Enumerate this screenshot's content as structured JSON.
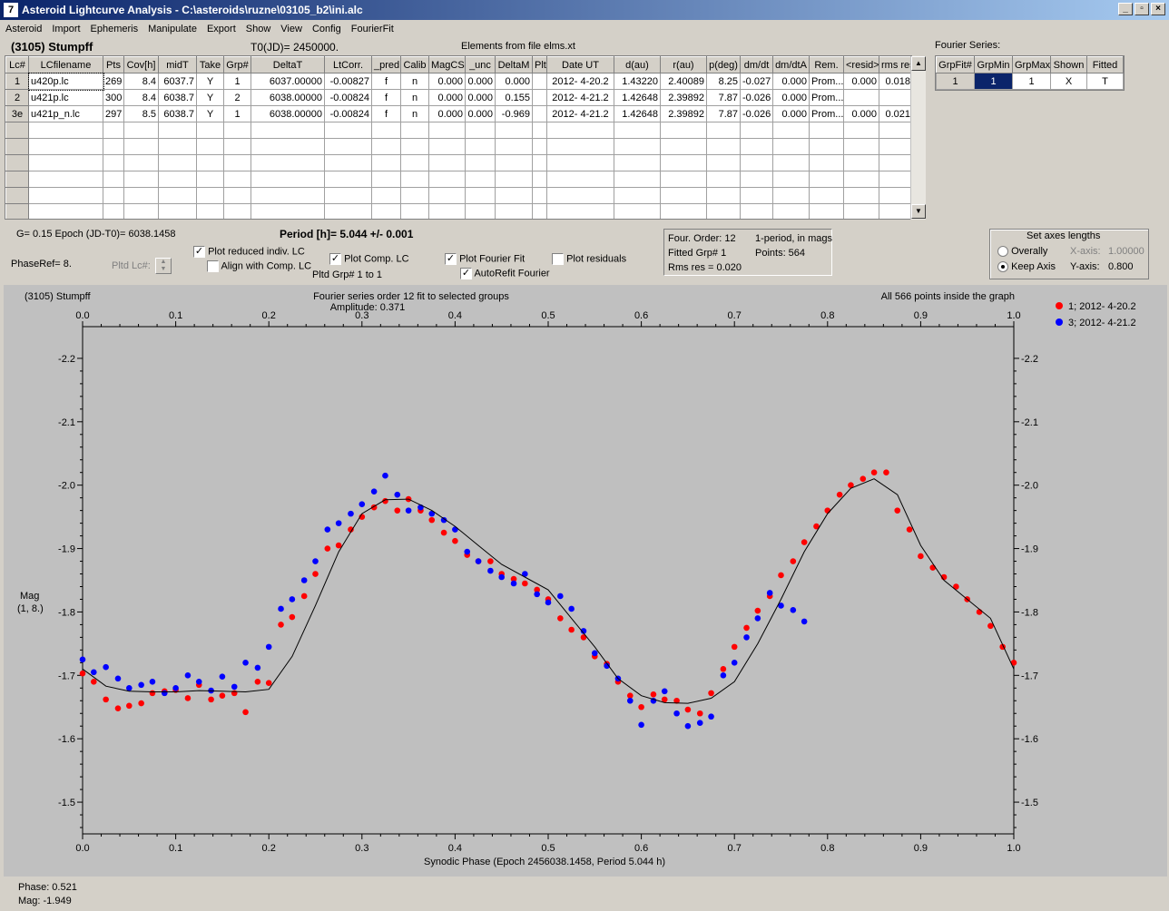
{
  "window": {
    "title": "Asteroid Lightcurve Analysis - C:\\asteroids\\ruzne\\03105_b2\\ini.alc",
    "icon_label": "7",
    "minimize": "_",
    "restore": "▫",
    "close": "×"
  },
  "menu": [
    "Asteroid",
    "Import",
    "Ephemeris",
    "Manipulate",
    "Export",
    "Show",
    "View",
    "Config",
    "FourierFit"
  ],
  "header": {
    "asteroid_name": "(3105) Stumpff",
    "t0": "T0(JD)= 2450000.",
    "elements": "Elements from file elms.xt"
  },
  "lc_table": {
    "columns": [
      "Lc#",
      "LCfilename",
      "Pts",
      "Cov[h]",
      "midT",
      "Take",
      "Grp#",
      "DeltaT",
      "LtCorr.",
      "_pred",
      "Calib",
      "MagCS",
      "_unc",
      "DeltaM",
      "Plt",
      "Date UT",
      "d(au)",
      "r(au)",
      "p(deg)",
      "dm/dt",
      "dm/dtA",
      "Rem.",
      "<resid>",
      "rms res"
    ],
    "rows": [
      [
        "1",
        "u420p.lc",
        "269",
        "8.4",
        "6037.7",
        "Y",
        "1",
        "6037.00000",
        "-0.00827",
        "f",
        "n",
        "0.000",
        "0.000",
        "0.000",
        "",
        "2012- 4-20.2",
        "1.43220",
        "2.40089",
        "8.25",
        "-0.027",
        "0.000",
        "Prom...",
        "0.000",
        "0.018"
      ],
      [
        "2",
        "u421p.lc",
        "300",
        "8.4",
        "6038.7",
        "Y",
        "2",
        "6038.00000",
        "-0.00824",
        "f",
        "n",
        "0.000",
        "0.000",
        "0.155",
        "",
        "2012- 4-21.2",
        "1.42648",
        "2.39892",
        "7.87",
        "-0.026",
        "0.000",
        "Prom...",
        "",
        ""
      ],
      [
        "3e",
        "u421p_n.lc",
        "297",
        "8.5",
        "6038.7",
        "Y",
        "1",
        "6038.00000",
        "-0.00824",
        "f",
        "n",
        "0.000",
        "0.000",
        "-0.969",
        "",
        "2012- 4-21.2",
        "1.42648",
        "2.39892",
        "7.87",
        "-0.026",
        "0.000",
        "Prom...",
        "0.000",
        "0.021"
      ]
    ],
    "empty_rows": 6
  },
  "fourier_panel": {
    "title": "Fourier Series:",
    "columns": [
      "GrpFit#",
      "GrpMin",
      "GrpMax",
      "Shown",
      "Fitted"
    ],
    "row": [
      "1",
      "1",
      "1",
      "X",
      "T"
    ]
  },
  "info": {
    "g_epoch": "G= 0.15   Epoch (JD-T0)= 6038.1458",
    "period": "Period [h]= 5.044 +/- 0.001",
    "phase_ref": "PhaseRef= 8.",
    "pltd_lc": "Pltd Lc#:",
    "pltd_grp": "Pltd Grp#  1   to   1"
  },
  "checkboxes": {
    "plot_reduced": {
      "label": "Plot reduced indiv. LC",
      "checked": true
    },
    "align_comp": {
      "label": "Align with Comp. LC",
      "checked": false
    },
    "plot_comp": {
      "label": "Plot Comp. LC",
      "checked": true
    },
    "plot_fourier": {
      "label": "Plot Fourier Fit",
      "checked": true
    },
    "autorefit": {
      "label": "AutoRefit Fourier",
      "checked": true
    },
    "plot_residuals": {
      "label": "Plot residuals",
      "checked": false
    }
  },
  "fit_summary": {
    "order": "Four. Order: 12",
    "mode": "1-period, in mags",
    "fitted_grp": "Fitted Grp# 1",
    "points": "Points: 564",
    "rms": "Rms res      = 0.020"
  },
  "axes_box": {
    "title": "Set axes lengths",
    "overally": "Overally",
    "keep_axis": "Keep Axis",
    "x_axis_label": "X-axis:",
    "x_axis_value": "1.00000",
    "y_axis_label": "Y-axis:",
    "y_axis_value": "0.800",
    "selected": "keep_axis"
  },
  "plot": {
    "title_left": "(3105) Stumpff",
    "title_center": "Fourier series order 12 fit to selected groups",
    "amplitude": "Amplitude: 0.371",
    "title_right": "All 566 points inside the graph",
    "ylabel_line1": "Mag",
    "ylabel_line2": "(1, 8.)",
    "xlabel": "Synodic Phase (Epoch 2456038.1458, Period 5.044 h)",
    "status_phase": "Phase:  0.521",
    "status_mag": "Mag:    -1.949"
  },
  "chart_data": {
    "type": "scatter",
    "x_ticks": [
      "0.0",
      "0.1",
      "0.2",
      "0.3",
      "0.4",
      "0.5",
      "0.6",
      "0.7",
      "0.8",
      "0.9",
      "1.0"
    ],
    "y_ticks": [
      "-2.2",
      "-2.1",
      "-2.0",
      "-1.9",
      "-1.8",
      "-1.7",
      "-1.6",
      "-1.5"
    ],
    "xlim": [
      0,
      1
    ],
    "ylim": [
      -2.25,
      -1.45
    ],
    "y_inverted": true,
    "fit_curve": {
      "x": [
        0.0,
        0.025,
        0.05,
        0.075,
        0.1,
        0.125,
        0.15,
        0.175,
        0.2,
        0.225,
        0.25,
        0.275,
        0.3,
        0.325,
        0.35,
        0.375,
        0.4,
        0.425,
        0.45,
        0.475,
        0.5,
        0.525,
        0.55,
        0.575,
        0.6,
        0.625,
        0.65,
        0.675,
        0.7,
        0.725,
        0.75,
        0.775,
        0.8,
        0.825,
        0.85,
        0.875,
        0.9,
        0.925,
        0.95,
        0.975,
        1.0
      ],
      "y": [
        -1.71,
        -1.683,
        -1.675,
        -1.674,
        -1.674,
        -1.676,
        -1.675,
        -1.674,
        -1.678,
        -1.73,
        -1.81,
        -1.895,
        -1.955,
        -1.977,
        -1.978,
        -1.96,
        -1.935,
        -1.905,
        -1.875,
        -1.855,
        -1.835,
        -1.79,
        -1.745,
        -1.695,
        -1.668,
        -1.657,
        -1.656,
        -1.664,
        -1.69,
        -1.75,
        -1.82,
        -1.895,
        -1.955,
        -1.995,
        -2.01,
        -1.985,
        -1.905,
        -1.85,
        -1.82,
        -1.79,
        -1.71
      ]
    },
    "series": [
      {
        "name": "1; 2012- 4-20.2",
        "color": "#ff0000",
        "points": [
          [
            0.0,
            -1.703
          ],
          [
            0.012,
            -1.69
          ],
          [
            0.025,
            -1.662
          ],
          [
            0.038,
            -1.648
          ],
          [
            0.05,
            -1.652
          ],
          [
            0.063,
            -1.656
          ],
          [
            0.075,
            -1.672
          ],
          [
            0.088,
            -1.675
          ],
          [
            0.1,
            -1.677
          ],
          [
            0.113,
            -1.664
          ],
          [
            0.125,
            -1.685
          ],
          [
            0.138,
            -1.662
          ],
          [
            0.15,
            -1.668
          ],
          [
            0.163,
            -1.672
          ],
          [
            0.175,
            -1.642
          ],
          [
            0.188,
            -1.69
          ],
          [
            0.2,
            -1.688
          ],
          [
            0.213,
            -1.78
          ],
          [
            0.225,
            -1.792
          ],
          [
            0.238,
            -1.825
          ],
          [
            0.25,
            -1.86
          ],
          [
            0.263,
            -1.9
          ],
          [
            0.275,
            -1.905
          ],
          [
            0.288,
            -1.93
          ],
          [
            0.3,
            -1.95
          ],
          [
            0.313,
            -1.965
          ],
          [
            0.325,
            -1.975
          ],
          [
            0.338,
            -1.96
          ],
          [
            0.35,
            -1.978
          ],
          [
            0.363,
            -1.96
          ],
          [
            0.375,
            -1.945
          ],
          [
            0.388,
            -1.925
          ],
          [
            0.4,
            -1.912
          ],
          [
            0.413,
            -1.89
          ],
          [
            0.425,
            -1.88
          ],
          [
            0.438,
            -1.88
          ],
          [
            0.45,
            -1.86
          ],
          [
            0.463,
            -1.852
          ],
          [
            0.475,
            -1.845
          ],
          [
            0.488,
            -1.835
          ],
          [
            0.5,
            -1.82
          ],
          [
            0.513,
            -1.79
          ],
          [
            0.525,
            -1.772
          ],
          [
            0.538,
            -1.76
          ],
          [
            0.55,
            -1.73
          ],
          [
            0.563,
            -1.718
          ],
          [
            0.575,
            -1.69
          ],
          [
            0.588,
            -1.668
          ],
          [
            0.6,
            -1.65
          ],
          [
            0.613,
            -1.67
          ],
          [
            0.625,
            -1.662
          ],
          [
            0.638,
            -1.66
          ],
          [
            0.65,
            -1.646
          ],
          [
            0.663,
            -1.64
          ],
          [
            0.675,
            -1.672
          ],
          [
            0.688,
            -1.71
          ],
          [
            0.7,
            -1.745
          ],
          [
            0.713,
            -1.775
          ],
          [
            0.725,
            -1.802
          ],
          [
            0.738,
            -1.825
          ],
          [
            0.75,
            -1.858
          ],
          [
            0.763,
            -1.88
          ],
          [
            0.775,
            -1.91
          ],
          [
            0.788,
            -1.935
          ],
          [
            0.8,
            -1.96
          ],
          [
            0.813,
            -1.985
          ],
          [
            0.825,
            -2.0
          ],
          [
            0.838,
            -2.01
          ],
          [
            0.85,
            -2.02
          ],
          [
            0.863,
            -2.02
          ],
          [
            0.875,
            -1.96
          ],
          [
            0.888,
            -1.93
          ],
          [
            0.9,
            -1.888
          ],
          [
            0.913,
            -1.87
          ],
          [
            0.925,
            -1.855
          ],
          [
            0.938,
            -1.84
          ],
          [
            0.95,
            -1.82
          ],
          [
            0.963,
            -1.8
          ],
          [
            0.975,
            -1.778
          ],
          [
            0.988,
            -1.745
          ],
          [
            1.0,
            -1.72
          ]
        ]
      },
      {
        "name": "3; 2012- 4-21.2",
        "color": "#0000ff",
        "points": [
          [
            0.0,
            -1.725
          ],
          [
            0.012,
            -1.705
          ],
          [
            0.025,
            -1.713
          ],
          [
            0.038,
            -1.695
          ],
          [
            0.05,
            -1.68
          ],
          [
            0.063,
            -1.685
          ],
          [
            0.075,
            -1.69
          ],
          [
            0.088,
            -1.672
          ],
          [
            0.1,
            -1.68
          ],
          [
            0.113,
            -1.7
          ],
          [
            0.125,
            -1.69
          ],
          [
            0.138,
            -1.676
          ],
          [
            0.15,
            -1.698
          ],
          [
            0.163,
            -1.682
          ],
          [
            0.175,
            -1.72
          ],
          [
            0.188,
            -1.712
          ],
          [
            0.2,
            -1.745
          ],
          [
            0.213,
            -1.805
          ],
          [
            0.225,
            -1.82
          ],
          [
            0.238,
            -1.85
          ],
          [
            0.25,
            -1.88
          ],
          [
            0.263,
            -1.93
          ],
          [
            0.275,
            -1.94
          ],
          [
            0.288,
            -1.955
          ],
          [
            0.3,
            -1.97
          ],
          [
            0.313,
            -1.99
          ],
          [
            0.325,
            -2.015
          ],
          [
            0.338,
            -1.985
          ],
          [
            0.35,
            -1.96
          ],
          [
            0.363,
            -1.965
          ],
          [
            0.375,
            -1.955
          ],
          [
            0.388,
            -1.945
          ],
          [
            0.4,
            -1.93
          ],
          [
            0.413,
            -1.895
          ],
          [
            0.425,
            -1.88
          ],
          [
            0.438,
            -1.865
          ],
          [
            0.45,
            -1.855
          ],
          [
            0.463,
            -1.845
          ],
          [
            0.475,
            -1.86
          ],
          [
            0.488,
            -1.828
          ],
          [
            0.5,
            -1.815
          ],
          [
            0.513,
            -1.825
          ],
          [
            0.525,
            -1.805
          ],
          [
            0.538,
            -1.77
          ],
          [
            0.55,
            -1.735
          ],
          [
            0.563,
            -1.715
          ],
          [
            0.575,
            -1.695
          ],
          [
            0.588,
            -1.66
          ],
          [
            0.6,
            -1.622
          ],
          [
            0.613,
            -1.66
          ],
          [
            0.625,
            -1.675
          ],
          [
            0.638,
            -1.64
          ],
          [
            0.65,
            -1.62
          ],
          [
            0.663,
            -1.625
          ],
          [
            0.675,
            -1.635
          ],
          [
            0.688,
            -1.7
          ],
          [
            0.7,
            -1.72
          ],
          [
            0.713,
            -1.76
          ],
          [
            0.725,
            -1.79
          ],
          [
            0.738,
            -1.83
          ],
          [
            0.75,
            -1.81
          ],
          [
            0.763,
            -1.803
          ],
          [
            0.775,
            -1.785
          ]
        ]
      }
    ],
    "legend": [
      "1; 2012- 4-20.2",
      "3; 2012- 4-21.2"
    ],
    "legend_position": "right"
  }
}
